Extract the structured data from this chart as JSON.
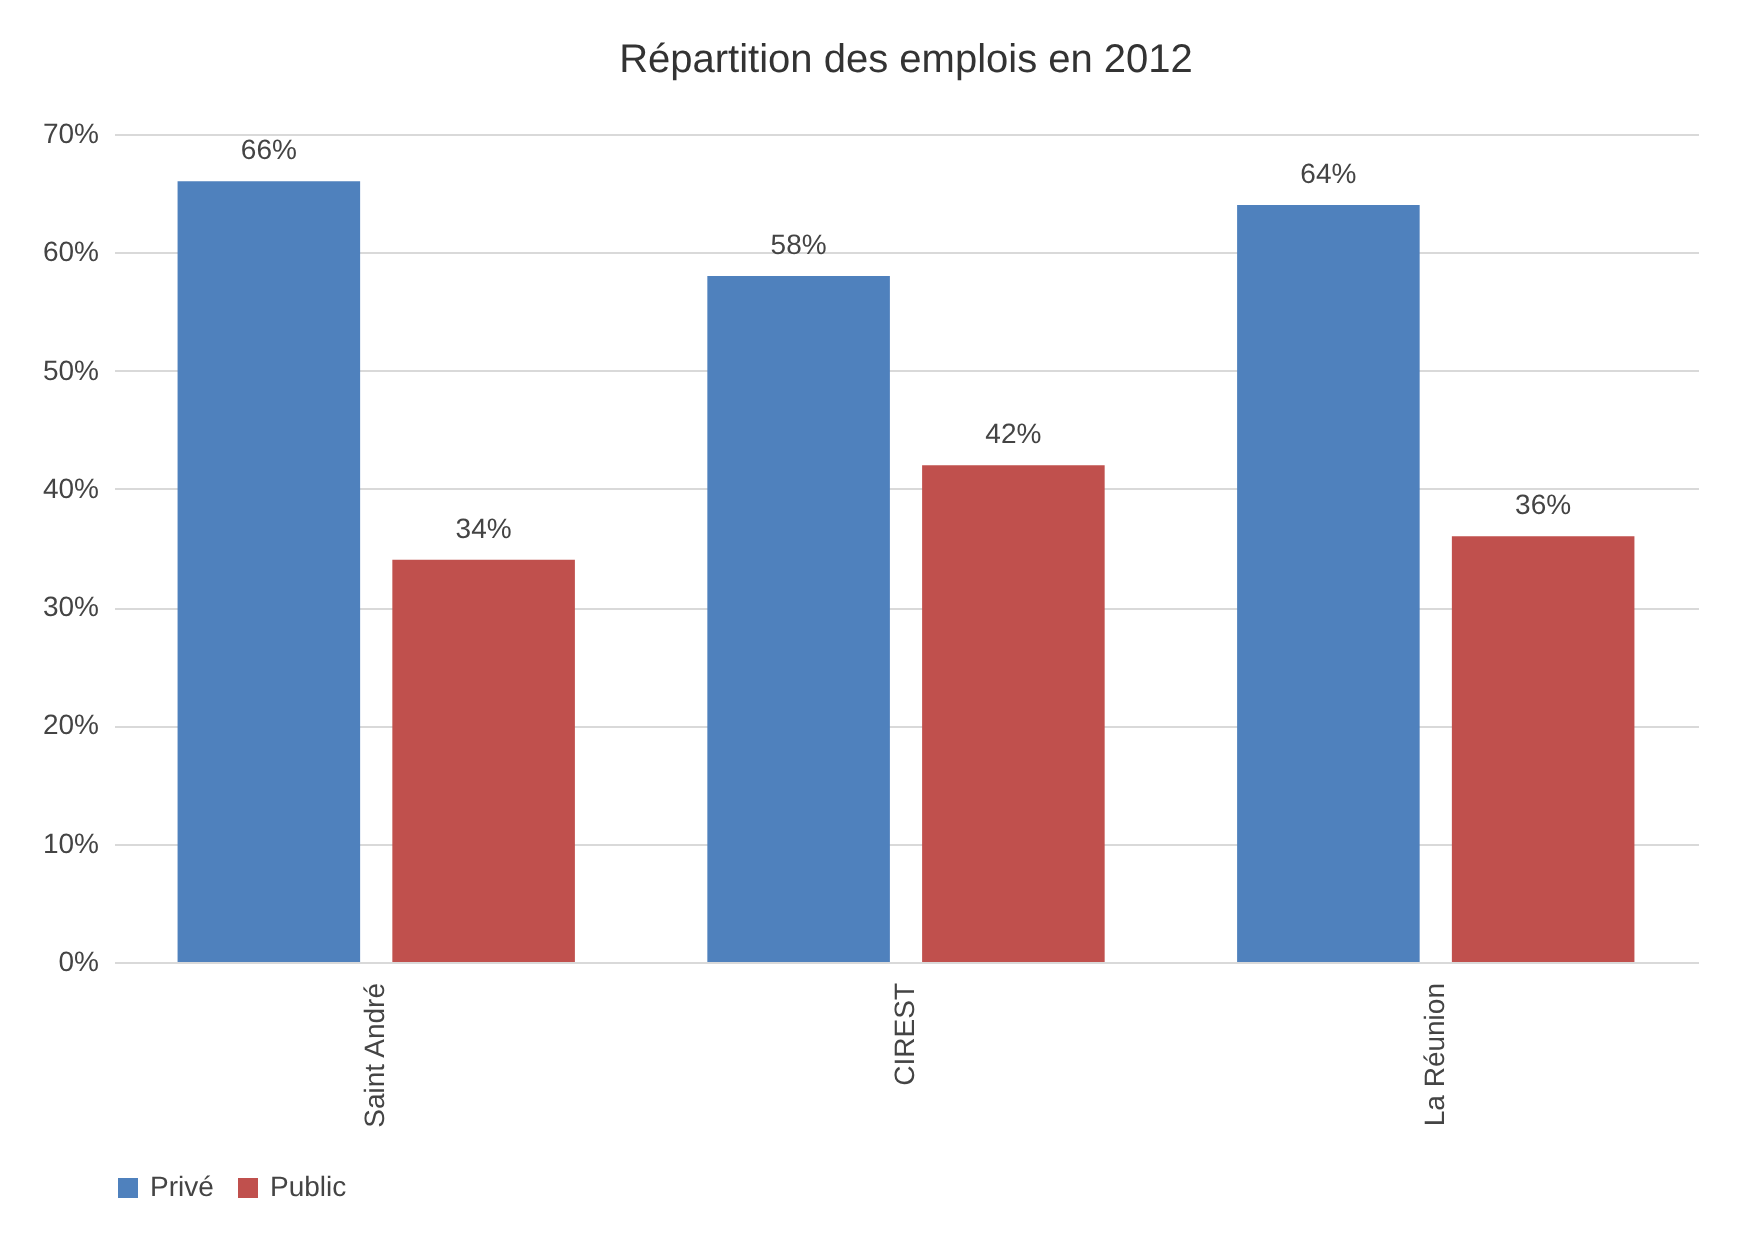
{
  "chart_data": {
    "type": "bar",
    "title": "Répartition des emplois en 2012",
    "categories": [
      "Saint André",
      "CIREST",
      "La Réunion"
    ],
    "series": [
      {
        "name": "Privé",
        "color": "#4f81bd",
        "values": [
          66,
          58,
          64
        ],
        "value_labels": [
          "66%",
          "58%",
          "64%"
        ]
      },
      {
        "name": "Public",
        "color": "#c0504d",
        "values": [
          34,
          42,
          36
        ],
        "value_labels": [
          "34%",
          "42%",
          "36%"
        ]
      }
    ],
    "ylim": [
      0,
      70
    ],
    "yticks": [
      {
        "value": 0,
        "label": "0%"
      },
      {
        "value": 10,
        "label": "10%"
      },
      {
        "value": 20,
        "label": "20%"
      },
      {
        "value": 30,
        "label": "30%"
      },
      {
        "value": 40,
        "label": "40%"
      },
      {
        "value": 50,
        "label": "50%"
      },
      {
        "value": 60,
        "label": "60%"
      },
      {
        "value": 70,
        "label": "70%"
      }
    ],
    "grid": "y",
    "legend": "bottom"
  }
}
